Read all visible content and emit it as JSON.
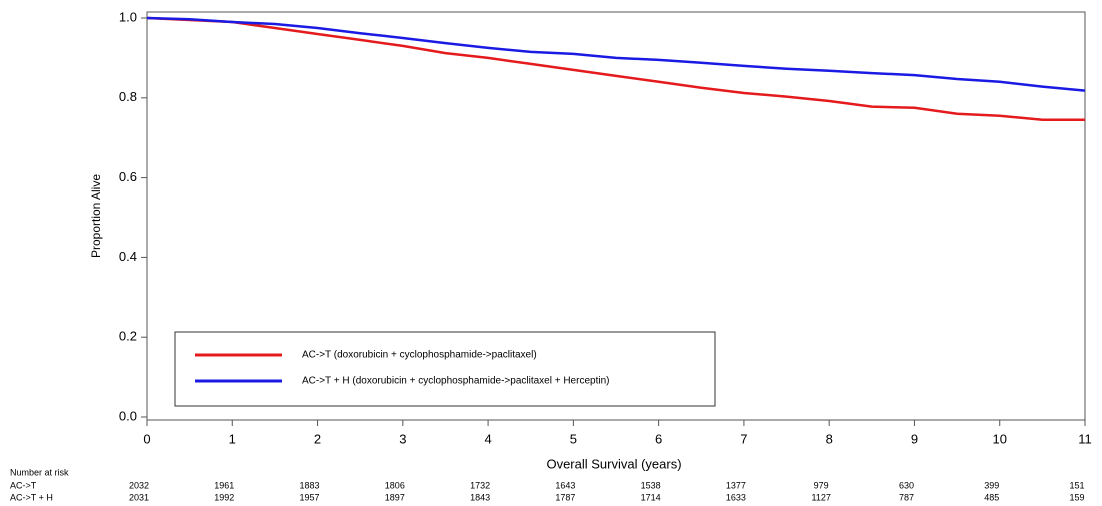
{
  "chart_data": {
    "type": "line",
    "ylabel": "Proportion Alive",
    "xlabel": "Overall Survival (years)",
    "x": [
      0,
      0.5,
      1,
      1.5,
      2,
      2.5,
      3,
      3.5,
      4,
      4.5,
      5,
      5.5,
      6,
      6.5,
      7,
      7.5,
      8,
      8.5,
      9,
      9.5,
      10,
      10.5,
      11
    ],
    "series": [
      {
        "name": "AC->T (doxorubicin + cyclophosphamide->paclitaxel)",
        "color": "#e41a1c",
        "values": [
          1.0,
          0.995,
          0.99,
          0.975,
          0.96,
          0.945,
          0.93,
          0.912,
          0.9,
          0.885,
          0.87,
          0.855,
          0.84,
          0.825,
          0.812,
          0.803,
          0.792,
          0.778,
          0.775,
          0.76,
          0.755,
          0.745,
          0.745
        ]
      },
      {
        "name": "AC->T + H (doxorubicin + cyclophosphamide->paclitaxel + Herceptin)",
        "color": "#1a1ae4",
        "values": [
          1.0,
          0.997,
          0.99,
          0.985,
          0.975,
          0.962,
          0.95,
          0.937,
          0.925,
          0.915,
          0.91,
          0.9,
          0.895,
          0.888,
          0.88,
          0.873,
          0.868,
          0.862,
          0.857,
          0.847,
          0.84,
          0.828,
          0.818
        ]
      }
    ],
    "xlim": [
      0,
      11
    ],
    "xticks": [
      0,
      1,
      2,
      3,
      4,
      5,
      6,
      7,
      8,
      9,
      10,
      11
    ],
    "ylim": [
      0,
      1
    ],
    "yticks": [
      {
        "value": 0,
        "label": "0.0"
      },
      0.2,
      0.4,
      0.6,
      0.8,
      {
        "value": 1,
        "label": "1.0"
      }
    ],
    "legend": "lower left",
    "risk_table": {
      "title": "Number at risk",
      "rows": [
        {
          "name": "AC->T",
          "values": [
            "2032",
            "1961",
            "1883",
            "1806",
            "1732",
            "1643",
            "1538",
            "1377",
            "979",
            "630",
            "399",
            "151"
          ]
        },
        {
          "name": "AC->T + H",
          "values": [
            "2031",
            "1992",
            "1957",
            "1897",
            "1843",
            "1787",
            "1714",
            "1633",
            "1127",
            "787",
            "485",
            "159"
          ]
        }
      ]
    }
  }
}
